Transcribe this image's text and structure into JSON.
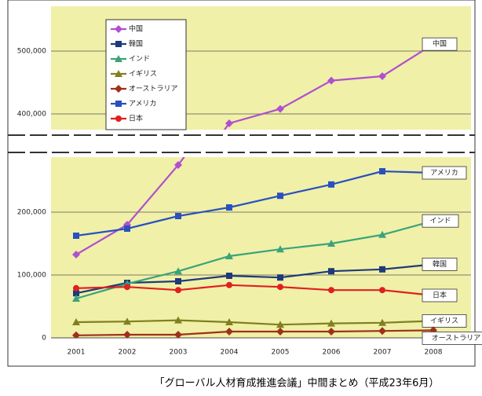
{
  "chart_data": {
    "type": "line",
    "categories": [
      "2001",
      "2002",
      "2003",
      "2004",
      "2005",
      "2006",
      "2007",
      "2008"
    ],
    "panels": [
      {
        "ylim": [
          375000,
          571250
        ],
        "yticks": [
          {
            "value": 400000,
            "label": "400,000"
          },
          {
            "value": 500000,
            "label": "500,000"
          }
        ]
      },
      {
        "ylim": [
          0,
          287500
        ],
        "yticks": [
          0,
          {
            "value": 100000,
            "label": "100,000"
          },
          {
            "value": 200000,
            "label": "200,000"
          }
        ]
      }
    ],
    "series": [
      {
        "name": "中国",
        "color": "#b04fd0",
        "marker": "diamond",
        "values": [
          132500,
          180000,
          275000,
          385000,
          408000,
          453000,
          460000,
          511000
        ]
      },
      {
        "name": "韓国",
        "color": "#1f3a7a",
        "marker": "square",
        "values": [
          71000,
          87500,
          90000,
          98750,
          96000,
          106000,
          109000,
          117000
        ]
      },
      {
        "name": "インド",
        "color": "#3aa37a",
        "marker": "triangle",
        "values": [
          62500,
          86000,
          106000,
          130000,
          141000,
          150000,
          164000,
          186000
        ]
      },
      {
        "name": "イギリス",
        "color": "#808020",
        "marker": "triangle",
        "values": [
          25000,
          26000,
          28000,
          25000,
          21000,
          23000,
          24000,
          27000
        ]
      },
      {
        "name": "オーストラリア",
        "color": "#a0301a",
        "marker": "diamond",
        "values": [
          4000,
          5000,
          5000,
          10000,
          10000,
          10000,
          11000,
          12000
        ]
      },
      {
        "name": "アメリカ",
        "color": "#2a50c0",
        "marker": "square",
        "values": [
          162500,
          173750,
          193750,
          207500,
          226000,
          244000,
          265000,
          262500
        ]
      },
      {
        "name": "日本",
        "color": "#e02020",
        "marker": "circle",
        "values": [
          79000,
          81000,
          76000,
          84000,
          81000,
          76000,
          76000,
          67500
        ]
      }
    ],
    "caption": "「グローバル人材育成推進会議」中間まとめ（平成23年6月）"
  }
}
